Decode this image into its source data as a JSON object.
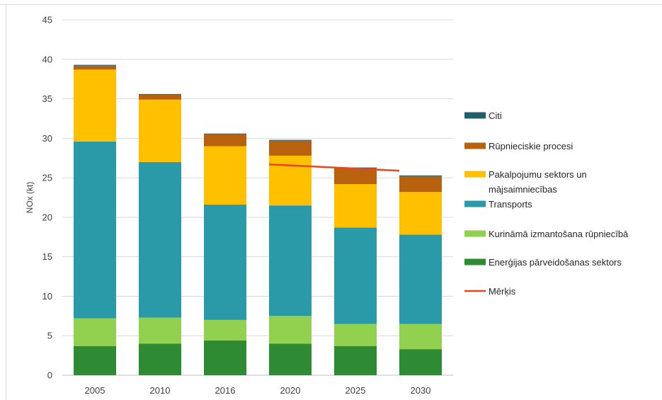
{
  "chart_data": {
    "type": "bar",
    "stacked": true,
    "ylabel": "NOx (kt)",
    "xlabel": "",
    "ylim": [
      0,
      45
    ],
    "yticks": [
      0,
      5,
      10,
      15,
      20,
      25,
      30,
      35,
      40,
      45
    ],
    "grid": true,
    "legend_position": "right",
    "categories": [
      "2005",
      "2010",
      "2016",
      "2020",
      "2025",
      "2030"
    ],
    "series": [
      {
        "name": "Enerģijas pārveidošanas sektors",
        "color": "#2e8b34",
        "values": [
          3.7,
          4.0,
          4.4,
          4.0,
          3.7,
          3.3
        ]
      },
      {
        "name": "Kurināmā izmantošana rūpniecībā",
        "color": "#92d050",
        "values": [
          3.5,
          3.3,
          2.6,
          3.5,
          2.8,
          3.2
        ]
      },
      {
        "name": "Transports",
        "color": "#2b9aa8",
        "values": [
          22.4,
          19.7,
          14.6,
          14.0,
          12.2,
          11.3
        ]
      },
      {
        "name": "Pakalpojumu sektors un mājsaimniecības",
        "color": "#ffc000",
        "values": [
          9.1,
          7.9,
          7.4,
          6.3,
          5.5,
          5.4
        ]
      },
      {
        "name": "Rūpnieciskie procesi",
        "color": "#b8610f",
        "values": [
          0.5,
          0.6,
          1.5,
          1.9,
          2.0,
          2.0
        ]
      },
      {
        "name": "Citi",
        "color": "#1f5f6b",
        "values": [
          0.1,
          0.1,
          0.1,
          0.1,
          0.1,
          0.1
        ]
      }
    ],
    "target": {
      "name": "Mērķis",
      "color": "#e8471d",
      "points": [
        {
          "x": "2020",
          "y": 26.7
        },
        {
          "x": "2030",
          "y": 25.9
        }
      ]
    },
    "legend_order": [
      "Citi",
      "Rūpnieciskie procesi",
      "Pakalpojumu sektors un mājsaimniecības",
      "Transports",
      "Kurināmā izmantošana rūpniecībā",
      "Enerģijas pārveidošanas sektors",
      "Mērķis"
    ],
    "legend_lines": {
      "Pakalpojumu sektors un mājsaimniecības": [
        "Pakalpojumu sektors un",
        "mājsaimniecības"
      ]
    }
  }
}
